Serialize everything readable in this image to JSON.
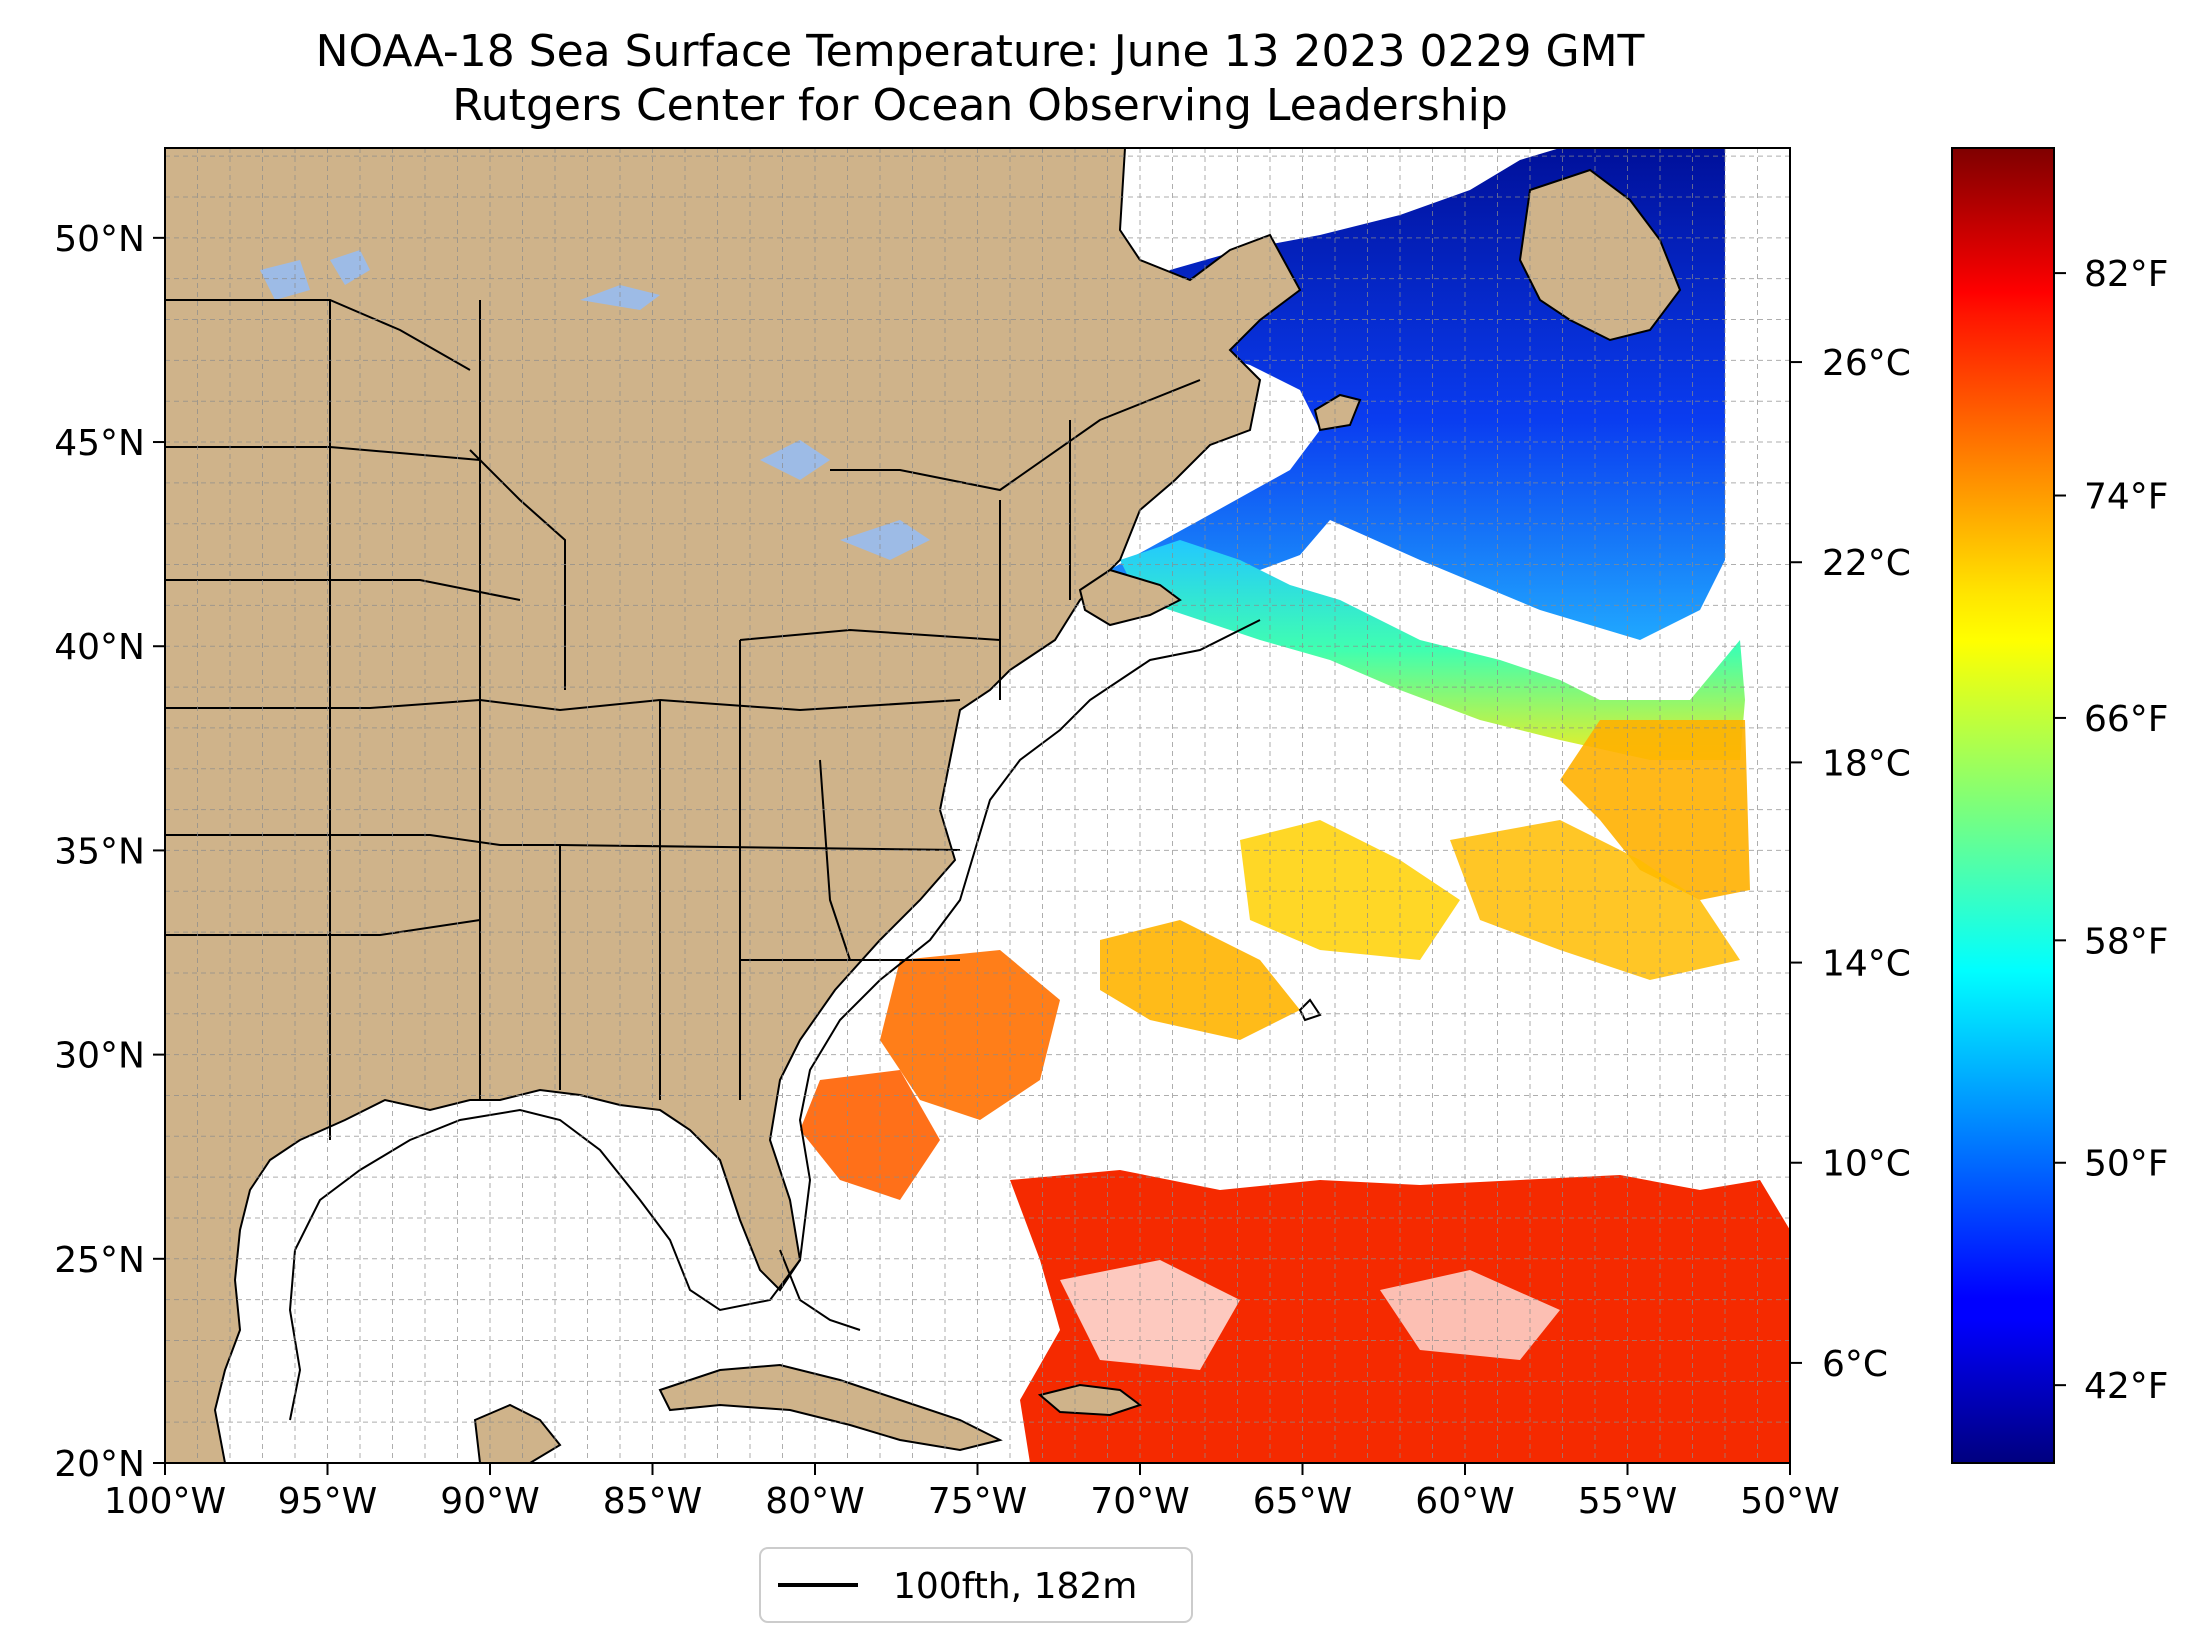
{
  "title": "NOAA-18 Sea Surface Temperature: June 13 2023 0229 GMT",
  "subtitle": "Rutgers Center for Ocean Observing Leadership",
  "map": {
    "projection": "plate-carree",
    "lon_range": [
      -100,
      -50
    ],
    "lat_range": [
      20,
      52.2
    ],
    "gridlines": true,
    "land_color": "#cfb38a",
    "lake_color": "#9dbbe6",
    "ocean_nodata_color": "#ffffff",
    "lon_ticks": [
      {
        "value": -100,
        "label": "100°W"
      },
      {
        "value": -95,
        "label": "95°W"
      },
      {
        "value": -90,
        "label": "90°W"
      },
      {
        "value": -85,
        "label": "85°W"
      },
      {
        "value": -80,
        "label": "80°W"
      },
      {
        "value": -75,
        "label": "75°W"
      },
      {
        "value": -70,
        "label": "70°W"
      },
      {
        "value": -65,
        "label": "65°W"
      },
      {
        "value": -60,
        "label": "60°W"
      },
      {
        "value": -55,
        "label": "55°W"
      },
      {
        "value": -50,
        "label": "50°W"
      }
    ],
    "lat_ticks": [
      {
        "value": 20,
        "label": "20°N"
      },
      {
        "value": 25,
        "label": "25°N"
      },
      {
        "value": 30,
        "label": "30°N"
      },
      {
        "value": 35,
        "label": "35°N"
      },
      {
        "value": 40,
        "label": "40°N"
      },
      {
        "value": 45,
        "label": "45°N"
      },
      {
        "value": 50,
        "label": "50°N"
      }
    ]
  },
  "colorbar": {
    "colormap": "jet",
    "range_f": [
      39.2,
      86.5
    ],
    "celsius_ticks": [
      {
        "value": 6,
        "label": "6°C"
      },
      {
        "value": 10,
        "label": "10°C"
      },
      {
        "value": 14,
        "label": "14°C"
      },
      {
        "value": 18,
        "label": "18°C"
      },
      {
        "value": 22,
        "label": "22°C"
      },
      {
        "value": 26,
        "label": "26°C"
      }
    ],
    "fahrenheit_ticks": [
      {
        "value": 42,
        "label": "42°F"
      },
      {
        "value": 50,
        "label": "50°F"
      },
      {
        "value": 58,
        "label": "58°F"
      },
      {
        "value": 66,
        "label": "66°F"
      },
      {
        "value": 74,
        "label": "74°F"
      },
      {
        "value": 82,
        "label": "82°F"
      }
    ]
  },
  "legend": {
    "label": "100fth, 182m",
    "placement": "bottom-center"
  }
}
